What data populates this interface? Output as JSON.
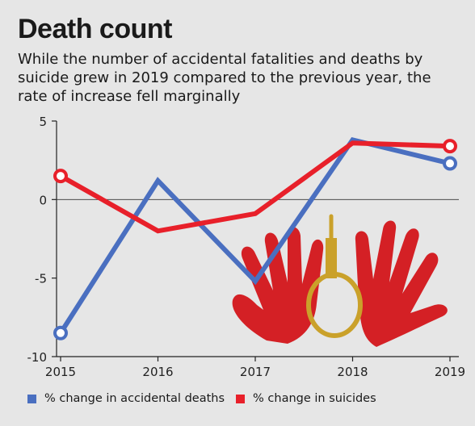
{
  "title": "Death count",
  "subtitle": "While the number of accidental fatalities and deaths by suicide grew in 2019 compared to the previous year, the rate of increase fell marginally",
  "colors": {
    "accidental": "#4a6fc0",
    "suicides": "#e8202a",
    "illustration": "#d42025",
    "noose": "#caa12a"
  },
  "chart_data": {
    "type": "line",
    "title": "Death count",
    "x": [
      "2015",
      "2016",
      "2017",
      "2018",
      "2019"
    ],
    "ylim": [
      -10,
      5
    ],
    "yticks": [
      5,
      0,
      -5,
      -10
    ],
    "ytick_labels": [
      "5",
      "0",
      "-5",
      "-10"
    ],
    "series": [
      {
        "name": "% change in accidental deaths",
        "values": [
          -8.5,
          1.2,
          -5.2,
          3.8,
          2.3
        ]
      },
      {
        "name": "% change in suicides",
        "values": [
          1.5,
          -2.0,
          -0.9,
          3.6,
          3.4
        ]
      }
    ],
    "legend_position": "bottom-left",
    "grid": "horizontal zero line"
  }
}
